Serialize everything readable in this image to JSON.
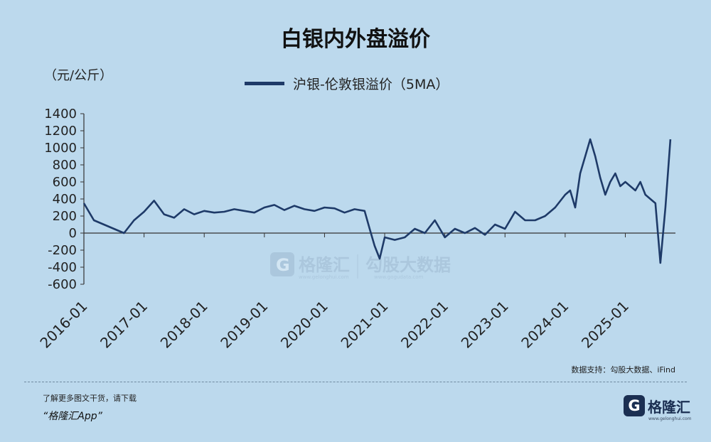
{
  "title": "白银内外盘溢价",
  "unit": "（元/公斤）",
  "legend_label": "沪银-伦敦银溢价（5MA）",
  "source": "数据支持：勾股大数据、iFind",
  "promo_line1": "了解更多图文干货，请下载",
  "promo_line2": "“格隆汇App”",
  "brand": {
    "icon_letter": "G",
    "name": "格隆汇",
    "sub": "www.gelonghui.com"
  },
  "watermark": {
    "brand": "格隆汇",
    "brand_sub": "www.gelonghui.com",
    "partner": "勾股大数据",
    "partner_sub": "www.gogudata.com"
  },
  "colors": {
    "background": "#bcd9ed",
    "line": "#1e3a68"
  },
  "chart_data": {
    "type": "line",
    "title": "白银内外盘溢价",
    "ylabel": "（元/公斤）",
    "ylim": [
      -600,
      1400
    ],
    "y_ticks": [
      "1400",
      "1200",
      "1000",
      "800",
      "600",
      "400",
      "200",
      "0",
      "-200",
      "-400",
      "-600"
    ],
    "x_ticks": [
      "2016-01",
      "2017-01",
      "2018-01",
      "2019-01",
      "2020-01",
      "2021-01",
      "2022-01",
      "2023-01",
      "2024-01",
      "2025-01"
    ],
    "legend_position": "top-center",
    "grid": false,
    "series": [
      {
        "name": "沪银-伦敦银溢价（5MA）",
        "x": [
          "2016-01",
          "2016-03",
          "2016-05",
          "2016-07",
          "2016-09",
          "2016-11",
          "2017-01",
          "2017-03",
          "2017-05",
          "2017-07",
          "2017-09",
          "2017-11",
          "2018-01",
          "2018-03",
          "2018-05",
          "2018-07",
          "2018-09",
          "2018-11",
          "2019-01",
          "2019-03",
          "2019-05",
          "2019-07",
          "2019-09",
          "2019-11",
          "2020-01",
          "2020-03",
          "2020-05",
          "2020-07",
          "2020-09",
          "2020-10",
          "2020-11",
          "2020-12",
          "2021-01",
          "2021-03",
          "2021-05",
          "2021-07",
          "2021-09",
          "2021-11",
          "2022-01",
          "2022-03",
          "2022-05",
          "2022-07",
          "2022-09",
          "2022-11",
          "2023-01",
          "2023-03",
          "2023-05",
          "2023-07",
          "2023-09",
          "2023-11",
          "2024-01",
          "2024-02",
          "2024-03",
          "2024-04",
          "2024-05",
          "2024-06",
          "2024-07",
          "2024-08",
          "2024-09",
          "2024-10",
          "2024-11",
          "2024-12",
          "2025-01",
          "2025-02",
          "2025-03",
          "2025-04",
          "2025-05",
          "2025-06",
          "2025-07",
          "2025-08",
          "2025-09",
          "2025-10"
        ],
        "values": [
          350,
          150,
          100,
          50,
          0,
          150,
          250,
          380,
          220,
          180,
          280,
          220,
          260,
          240,
          250,
          280,
          260,
          240,
          300,
          330,
          270,
          320,
          280,
          260,
          300,
          290,
          240,
          280,
          260,
          50,
          -150,
          -300,
          -50,
          -80,
          -50,
          50,
          0,
          150,
          -50,
          50,
          0,
          60,
          -20,
          100,
          50,
          250,
          150,
          150,
          200,
          300,
          450,
          500,
          300,
          700,
          900,
          1100,
          900,
          650,
          450,
          600,
          700,
          550,
          600,
          550,
          500,
          600,
          450,
          400,
          350,
          -350,
          300,
          1100
        ]
      }
    ]
  }
}
